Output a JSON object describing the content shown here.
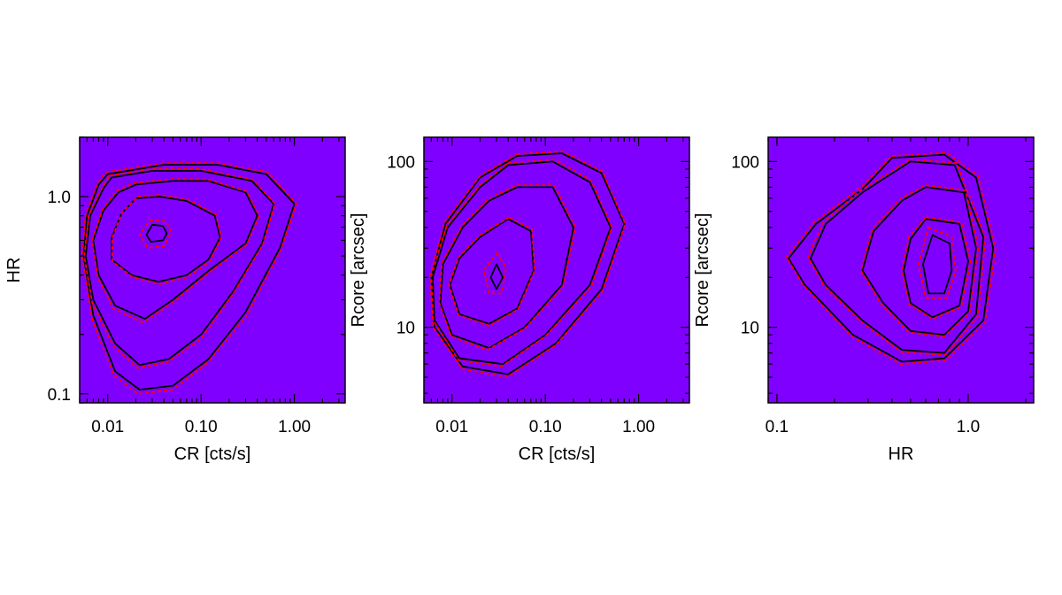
{
  "colors": {
    "background_bin": "#8000ff",
    "solid_contour": "#000000",
    "dashed_contour": "#ff0000",
    "colormap": [
      "#8000ff",
      "#4a3cff",
      "#2060ff",
      "#00c8ff",
      "#00ffa0",
      "#a0ff00",
      "#ffff00",
      "#ff9000",
      "#ff0000"
    ]
  },
  "chart_data": [
    {
      "type": "heatmap",
      "title": "",
      "xlabel": "CR [cts/s]",
      "ylabel": "HR",
      "xscale": "log",
      "yscale": "log",
      "xlim": [
        0.005,
        3.5
      ],
      "ylim": [
        0.09,
        2.0
      ],
      "xticks": [
        {
          "value": 0.01,
          "label": "0.01"
        },
        {
          "value": 0.1,
          "label": "0.10"
        },
        {
          "value": 1.0,
          "label": "1.00"
        }
      ],
      "yticks": [
        {
          "value": 0.1,
          "label": "0.1"
        },
        {
          "value": 1.0,
          "label": "1.0"
        }
      ],
      "grid": false,
      "density_peak": {
        "x": 0.035,
        "y": 0.65
      },
      "density_spread_dex": {
        "x": 0.42,
        "y": 0.28
      },
      "density_tilt": 0.6,
      "contour_levels": [
        0.9,
        0.7,
        0.45,
        0.2,
        0.08,
        0.035
      ],
      "solid_contours": [
        {
          "level": 0.9,
          "x": [
            0.03,
            0.039,
            0.043,
            0.039,
            0.029,
            0.026,
            0.03
          ],
          "y": [
            0.72,
            0.71,
            0.65,
            0.6,
            0.59,
            0.64,
            0.72
          ]
        },
        {
          "level": 0.45,
          "x": [
            0.02,
            0.036,
            0.07,
            0.14,
            0.16,
            0.12,
            0.07,
            0.035,
            0.018,
            0.011,
            0.011,
            0.014,
            0.02
          ],
          "y": [
            0.98,
            1.0,
            0.95,
            0.8,
            0.62,
            0.48,
            0.4,
            0.37,
            0.4,
            0.48,
            0.62,
            0.82,
            0.98
          ]
        },
        {
          "level": 0.2,
          "x": [
            0.02,
            0.05,
            0.12,
            0.3,
            0.4,
            0.3,
            0.12,
            0.05,
            0.025,
            0.012,
            0.008,
            0.007,
            0.009,
            0.013,
            0.02
          ],
          "y": [
            1.15,
            1.2,
            1.2,
            1.05,
            0.8,
            0.58,
            0.42,
            0.3,
            0.24,
            0.28,
            0.4,
            0.6,
            0.85,
            1.05,
            1.15
          ]
        },
        {
          "level": 0.08,
          "x": [
            0.011,
            0.03,
            0.1,
            0.35,
            0.6,
            0.45,
            0.22,
            0.1,
            0.045,
            0.022,
            0.012,
            0.007,
            0.0058,
            0.0065,
            0.009,
            0.011
          ],
          "y": [
            1.25,
            1.35,
            1.35,
            1.2,
            0.92,
            0.58,
            0.33,
            0.2,
            0.15,
            0.14,
            0.18,
            0.3,
            0.5,
            0.8,
            1.1,
            1.25
          ]
        },
        {
          "level": 0.035,
          "x": [
            0.01,
            0.04,
            0.15,
            0.5,
            1.0,
            0.7,
            0.3,
            0.12,
            0.05,
            0.022,
            0.012,
            0.007,
            0.0055,
            0.006,
            0.008,
            0.01
          ],
          "y": [
            1.3,
            1.45,
            1.45,
            1.3,
            0.92,
            0.55,
            0.26,
            0.15,
            0.11,
            0.105,
            0.13,
            0.25,
            0.5,
            0.8,
            1.15,
            1.3
          ]
        }
      ],
      "dashed_contours": [
        {
          "level": 0.7,
          "x": [
            0.028,
            0.042,
            0.048,
            0.04,
            0.027,
            0.022,
            0.028
          ],
          "y": [
            0.76,
            0.75,
            0.66,
            0.56,
            0.55,
            0.64,
            0.76
          ]
        },
        {
          "level": 0.45,
          "x": [
            0.021,
            0.037,
            0.072,
            0.145,
            0.165,
            0.125,
            0.072,
            0.036,
            0.0185,
            0.0112,
            0.0112,
            0.0142,
            0.021
          ],
          "y": [
            1.0,
            1.02,
            0.97,
            0.81,
            0.62,
            0.47,
            0.39,
            0.36,
            0.39,
            0.47,
            0.62,
            0.83,
            1.0
          ]
        },
        {
          "level": 0.2,
          "x": [
            0.019,
            0.05,
            0.12,
            0.31,
            0.42,
            0.31,
            0.12,
            0.05,
            0.024,
            0.0115,
            0.0078,
            0.0068,
            0.0088,
            0.0125,
            0.019
          ],
          "y": [
            1.17,
            1.23,
            1.22,
            1.06,
            0.8,
            0.57,
            0.41,
            0.29,
            0.23,
            0.27,
            0.39,
            0.6,
            0.86,
            1.07,
            1.17
          ]
        },
        {
          "level": 0.08,
          "x": [
            0.0105,
            0.03,
            0.1,
            0.36,
            0.62,
            0.46,
            0.22,
            0.1,
            0.044,
            0.021,
            0.0115,
            0.0068,
            0.0056,
            0.0063,
            0.0088,
            0.0105
          ],
          "y": [
            1.28,
            1.38,
            1.38,
            1.22,
            0.92,
            0.57,
            0.32,
            0.19,
            0.145,
            0.135,
            0.175,
            0.29,
            0.5,
            0.81,
            1.12,
            1.28
          ]
        },
        {
          "level": 0.035,
          "x": [
            0.0095,
            0.04,
            0.15,
            0.52,
            1.05,
            0.72,
            0.31,
            0.12,
            0.05,
            0.021,
            0.0115,
            0.0068,
            0.0053,
            0.0058,
            0.0078,
            0.0095
          ],
          "y": [
            1.33,
            1.48,
            1.48,
            1.33,
            0.92,
            0.54,
            0.25,
            0.145,
            0.105,
            0.1,
            0.125,
            0.24,
            0.5,
            0.81,
            1.17,
            1.33
          ]
        }
      ]
    },
    {
      "type": "heatmap",
      "title": "",
      "xlabel": "CR [cts/s]",
      "ylabel": "Rcore [arcsec]",
      "xscale": "log",
      "yscale": "log",
      "xlim": [
        0.005,
        3.5
      ],
      "ylim": [
        3.5,
        140
      ],
      "xticks": [
        {
          "value": 0.01,
          "label": "0.01"
        },
        {
          "value": 0.1,
          "label": "0.10"
        },
        {
          "value": 1.0,
          "label": "1.00"
        }
      ],
      "yticks": [
        {
          "value": 10,
          "label": "10"
        },
        {
          "value": 100,
          "label": "100"
        }
      ],
      "grid": false,
      "density_peak": {
        "x": 0.03,
        "y": 20
      },
      "density_spread_dex": {
        "x": 0.42,
        "y": 0.3
      },
      "density_tilt": 0.55,
      "contour_levels": [
        0.9,
        0.7,
        0.45,
        0.2,
        0.08,
        0.035
      ],
      "solid_contours": [
        {
          "level": 0.9,
          "x": [
            0.03,
            0.035,
            0.03,
            0.026,
            0.03
          ],
          "y": [
            24,
            20,
            17,
            20,
            24
          ]
        },
        {
          "level": 0.45,
          "x": [
            0.04,
            0.07,
            0.075,
            0.05,
            0.025,
            0.012,
            0.0095,
            0.012,
            0.02,
            0.04
          ],
          "y": [
            45,
            38,
            22,
            13,
            10.5,
            12,
            18,
            26,
            35,
            45
          ]
        },
        {
          "level": 0.2,
          "x": [
            0.05,
            0.12,
            0.2,
            0.15,
            0.06,
            0.025,
            0.01,
            0.0075,
            0.008,
            0.013,
            0.025,
            0.05
          ],
          "y": [
            70,
            70,
            40,
            18,
            10,
            7.5,
            9,
            14,
            24,
            40,
            58,
            70
          ]
        },
        {
          "level": 0.08,
          "x": [
            0.04,
            0.12,
            0.3,
            0.5,
            0.3,
            0.1,
            0.035,
            0.012,
            0.0065,
            0.0062,
            0.009,
            0.02,
            0.04
          ],
          "y": [
            95,
            100,
            75,
            40,
            18,
            9,
            6,
            6.5,
            11,
            20,
            40,
            70,
            95
          ]
        },
        {
          "level": 0.035,
          "x": [
            0.05,
            0.15,
            0.4,
            0.7,
            0.4,
            0.13,
            0.04,
            0.013,
            0.0065,
            0.006,
            0.0085,
            0.02,
            0.05
          ],
          "y": [
            108,
            112,
            85,
            42,
            17,
            8,
            5.2,
            5.8,
            10,
            20,
            42,
            80,
            108
          ]
        }
      ],
      "dashed_contours": [
        {
          "level": 0.7,
          "x": [
            0.03,
            0.038,
            0.034,
            0.025,
            0.022,
            0.03
          ],
          "y": [
            28,
            23,
            16,
            16,
            22,
            28
          ]
        },
        {
          "level": 0.45,
          "x": [
            0.041,
            0.072,
            0.077,
            0.051,
            0.025,
            0.0118,
            0.0093,
            0.0118,
            0.02,
            0.041
          ],
          "y": [
            46,
            39,
            22,
            12.8,
            10.2,
            11.8,
            18,
            26.5,
            36,
            46
          ]
        },
        {
          "level": 0.2,
          "x": [
            0.05,
            0.125,
            0.21,
            0.155,
            0.06,
            0.024,
            0.0098,
            0.0073,
            0.0078,
            0.0128,
            0.025,
            0.05
          ],
          "y": [
            72,
            72,
            40,
            17.5,
            9.8,
            7.3,
            8.8,
            14,
            24.5,
            41,
            60,
            72
          ]
        },
        {
          "level": 0.08,
          "x": [
            0.04,
            0.125,
            0.31,
            0.52,
            0.31,
            0.1,
            0.034,
            0.0118,
            0.0063,
            0.006,
            0.0088,
            0.02,
            0.04
          ],
          "y": [
            98,
            103,
            77,
            40,
            17.5,
            8.8,
            5.8,
            6.3,
            11,
            20.5,
            41,
            72,
            98
          ]
        },
        {
          "level": 0.035,
          "x": [
            0.05,
            0.155,
            0.41,
            0.72,
            0.41,
            0.13,
            0.039,
            0.0128,
            0.0063,
            0.0058,
            0.0083,
            0.02,
            0.05
          ],
          "y": [
            111,
            115,
            87,
            42,
            16.5,
            7.8,
            5,
            5.6,
            10,
            20.5,
            43,
            82,
            111
          ]
        }
      ]
    },
    {
      "type": "heatmap",
      "title": "",
      "xlabel": "HR",
      "ylabel": "Rcore [arcsec]",
      "xscale": "log",
      "yscale": "log",
      "xlim": [
        0.09,
        2.2
      ],
      "ylim": [
        3.5,
        140
      ],
      "xticks": [
        {
          "value": 0.1,
          "label": "0.1"
        },
        {
          "value": 1.0,
          "label": "1.0"
        }
      ],
      "yticks": [
        {
          "value": 10,
          "label": "10"
        },
        {
          "value": 100,
          "label": "100"
        }
      ],
      "grid": false,
      "density_peak": {
        "x": 0.7,
        "y": 24
      },
      "density_spread_dex": {
        "x": 0.22,
        "y": 0.32
      },
      "density_tilt": 0.25,
      "contour_levels": [
        0.9,
        0.7,
        0.45,
        0.2,
        0.08,
        0.035
      ],
      "solid_contours": [
        {
          "level": 0.9,
          "x": [
            0.65,
            0.8,
            0.82,
            0.75,
            0.62,
            0.58,
            0.65
          ],
          "y": [
            36,
            32,
            22,
            16,
            16,
            24,
            36
          ]
        },
        {
          "level": 0.45,
          "x": [
            0.6,
            0.9,
            1.0,
            0.9,
            0.65,
            0.5,
            0.46,
            0.5,
            0.6
          ],
          "y": [
            45,
            42,
            25,
            13.5,
            11.5,
            14,
            22,
            34,
            45
          ]
        },
        {
          "level": 0.2,
          "x": [
            0.6,
            0.95,
            1.1,
            1.0,
            0.75,
            0.5,
            0.36,
            0.28,
            0.32,
            0.45,
            0.6
          ],
          "y": [
            70,
            65,
            30,
            12.5,
            9,
            9.5,
            14,
            22,
            38,
            58,
            70
          ]
        },
        {
          "level": 0.08,
          "x": [
            0.5,
            0.85,
            1.2,
            1.1,
            0.75,
            0.45,
            0.28,
            0.18,
            0.15,
            0.18,
            0.28,
            0.5
          ],
          "y": [
            100,
            95,
            35,
            12,
            7,
            7.3,
            11,
            18,
            26,
            42,
            65,
            100
          ]
        },
        {
          "level": 0.035,
          "x": [
            0.4,
            0.75,
            1.1,
            1.35,
            1.2,
            0.75,
            0.45,
            0.25,
            0.14,
            0.115,
            0.16,
            0.28,
            0.4
          ],
          "y": [
            105,
            110,
            80,
            30,
            11,
            6.5,
            6.2,
            9,
            18,
            26,
            42,
            68,
            105
          ]
        }
      ],
      "dashed_contours": [
        {
          "level": 0.7,
          "x": [
            0.62,
            0.82,
            0.86,
            0.77,
            0.6,
            0.55,
            0.62
          ],
          "y": [
            40,
            35,
            22,
            15,
            15,
            24,
            40
          ]
        },
        {
          "level": 0.45,
          "x": [
            0.6,
            0.92,
            1.03,
            0.92,
            0.65,
            0.49,
            0.45,
            0.49,
            0.6
          ],
          "y": [
            46,
            43,
            25,
            13.2,
            11.2,
            13.8,
            22,
            35,
            46
          ]
        },
        {
          "level": 0.2,
          "x": [
            0.6,
            0.97,
            1.13,
            1.02,
            0.75,
            0.49,
            0.35,
            0.275,
            0.315,
            0.445,
            0.6
          ],
          "y": [
            72,
            67,
            30,
            12.2,
            8.8,
            9.3,
            13.8,
            22,
            39,
            60,
            72
          ]
        },
        {
          "level": 0.08,
          "x": [
            0.5,
            0.87,
            1.23,
            1.13,
            0.76,
            0.445,
            0.275,
            0.175,
            0.145,
            0.175,
            0.275,
            0.5
          ],
          "y": [
            103,
            98,
            35,
            11.7,
            6.8,
            7.1,
            10.8,
            18,
            26.5,
            43,
            67,
            103
          ]
        },
        {
          "level": 0.035,
          "x": [
            0.4,
            0.77,
            1.13,
            1.39,
            1.23,
            0.76,
            0.445,
            0.245,
            0.137,
            0.112,
            0.157,
            0.275,
            0.4
          ],
          "y": [
            108,
            113,
            82,
            30,
            10.7,
            6.3,
            6,
            8.8,
            18,
            26.5,
            43,
            70,
            108
          ]
        }
      ]
    }
  ]
}
